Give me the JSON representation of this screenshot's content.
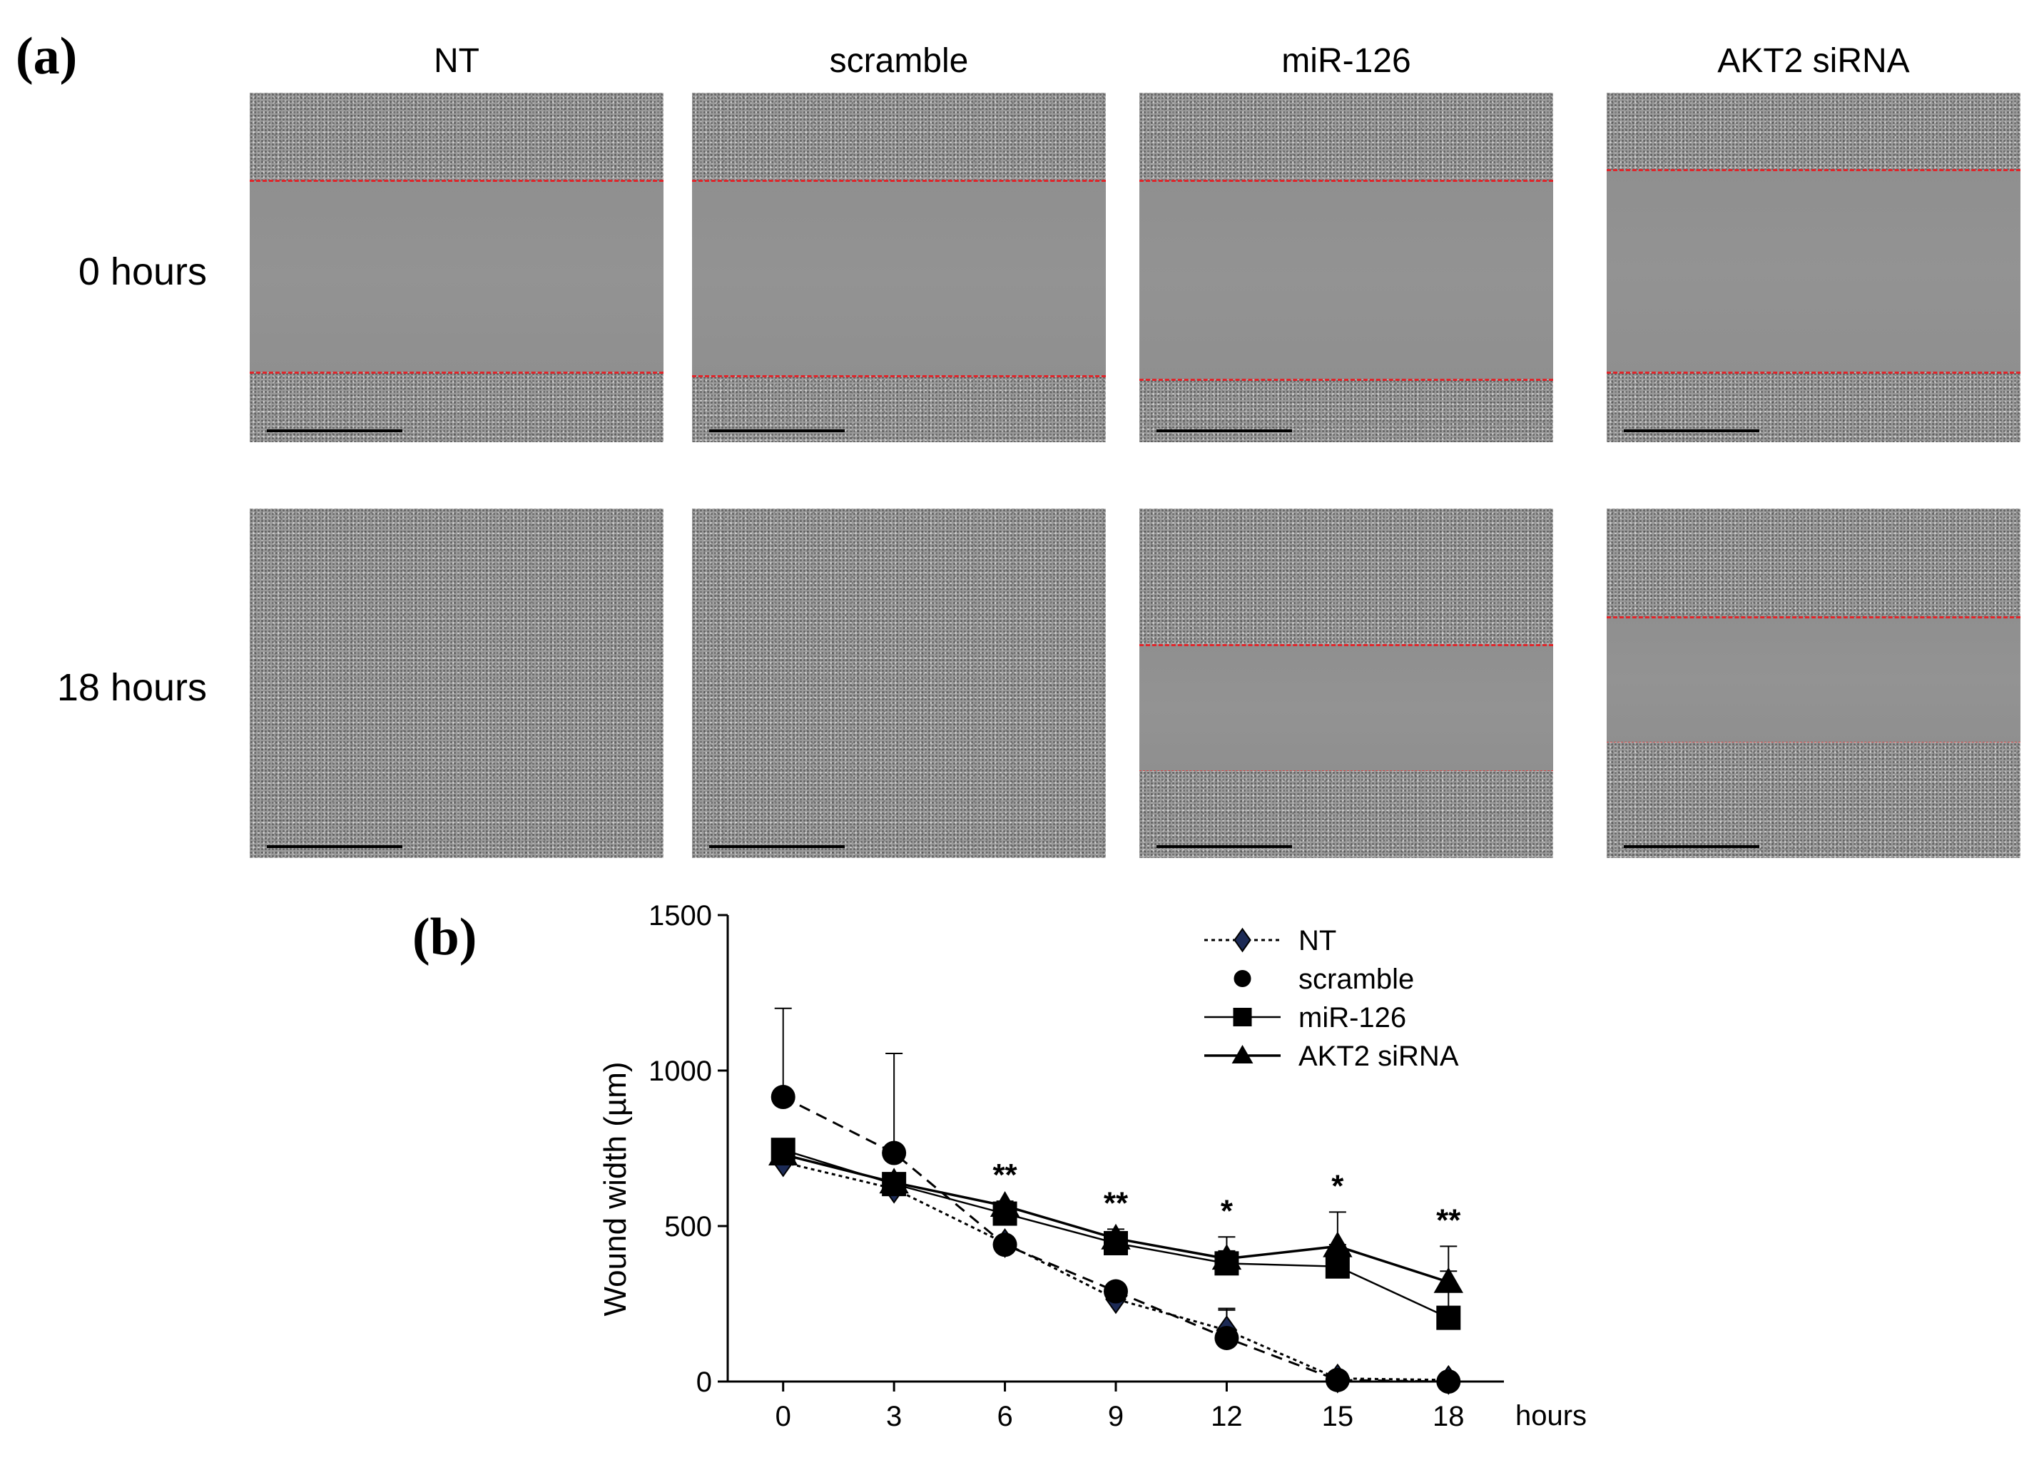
{
  "panel_a": {
    "letter": "(a)",
    "columns": [
      "NT",
      "scramble",
      "miR-126",
      "AKT2 siRNA"
    ],
    "rows": [
      "0 hours",
      "18 hours"
    ],
    "images": [
      {
        "row": 0,
        "col": 0,
        "gap": [
          0.25,
          0.8
        ]
      },
      {
        "row": 0,
        "col": 1,
        "gap": [
          0.25,
          0.81
        ]
      },
      {
        "row": 0,
        "col": 2,
        "gap": [
          0.25,
          0.82
        ]
      },
      {
        "row": 0,
        "col": 3,
        "gap": [
          0.22,
          0.8
        ]
      },
      {
        "row": 1,
        "col": 0,
        "gap": null
      },
      {
        "row": 1,
        "col": 1,
        "gap": null
      },
      {
        "row": 1,
        "col": 2,
        "gap": [
          0.39,
          0.75
        ]
      },
      {
        "row": 1,
        "col": 3,
        "gap": [
          0.31,
          0.67
        ]
      }
    ]
  },
  "panel_b": {
    "letter": "(b)"
  },
  "chart_data": {
    "type": "line",
    "title": "",
    "xlabel": "hours",
    "ylabel": "Wound width (µm)",
    "x": [
      0,
      3,
      6,
      9,
      12,
      15,
      18
    ],
    "xlim": [
      -1.5,
      19.5
    ],
    "ylim": [
      0,
      1500
    ],
    "yticks": [
      0,
      500,
      1000,
      1500
    ],
    "series": [
      {
        "name": "NT",
        "marker": "diamond",
        "line": "dotted",
        "values": [
          705,
          620,
          445,
          265,
          165,
          10,
          5
        ],
        "err": [
          75,
          0,
          0,
          0,
          65,
          0,
          0
        ]
      },
      {
        "name": "scramble",
        "marker": "circle",
        "line": "dashed",
        "values": [
          915,
          735,
          440,
          290,
          140,
          5,
          0
        ],
        "err": [
          285,
          320,
          0,
          0,
          95,
          0,
          0
        ]
      },
      {
        "name": "miR-126",
        "marker": "square",
        "line": "solid-thin",
        "values": [
          745,
          635,
          540,
          445,
          380,
          370,
          205
        ],
        "err": [
          0,
          0,
          40,
          45,
          40,
          70,
          150
        ]
      },
      {
        "name": "AKT2 siRNA",
        "marker": "triangle",
        "line": "solid",
        "values": [
          730,
          640,
          565,
          460,
          395,
          435,
          320
        ],
        "err": [
          0,
          0,
          0,
          0,
          70,
          110,
          115
        ]
      }
    ],
    "annotations": [
      {
        "x": 6,
        "text": "**"
      },
      {
        "x": 9,
        "text": "**"
      },
      {
        "x": 12,
        "text": "*"
      },
      {
        "x": 15,
        "text": "*"
      },
      {
        "x": 18,
        "text": "**"
      }
    ],
    "legend_position": "top-right"
  }
}
